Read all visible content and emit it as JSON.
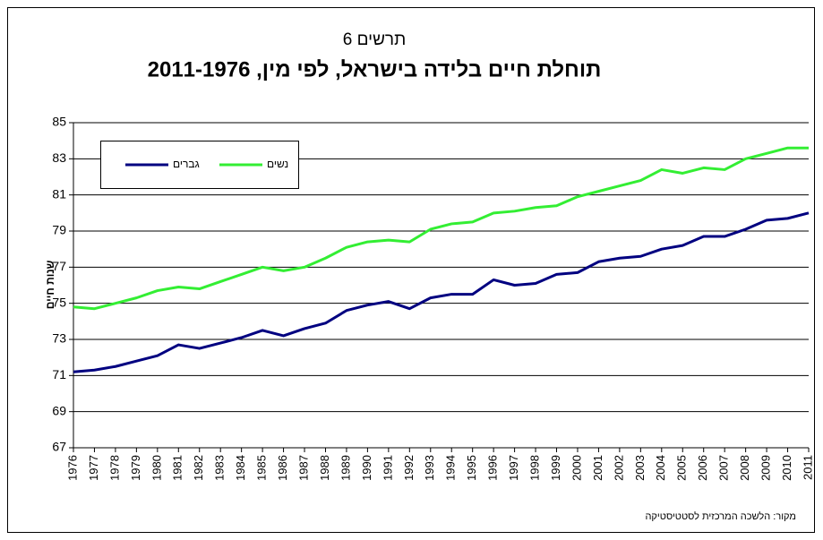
{
  "chart_data": {
    "type": "line",
    "subtitle": "תרשים 6",
    "title": "תוחלת חיים בלידה בישראל, לפי מין, 2011-1976",
    "y_label": "שנות חיים",
    "source": "מקור: הלשכה המרכזית לסטטיסטיקה",
    "categories": [
      "1976",
      "1977",
      "1978",
      "1979",
      "1980",
      "1981",
      "1982",
      "1983",
      "1984",
      "1985",
      "1986",
      "1987",
      "1988",
      "1989",
      "1990",
      "1991",
      "1992",
      "1993",
      "1994",
      "1995",
      "1996",
      "1997",
      "1998",
      "1999",
      "2000",
      "2001",
      "2002",
      "2003",
      "2004",
      "2005",
      "2006",
      "2007",
      "2008",
      "2009",
      "2010",
      "2011"
    ],
    "series": [
      {
        "name": "גברים",
        "color": "#000080",
        "values": [
          71.2,
          71.3,
          71.5,
          71.8,
          72.1,
          72.7,
          72.5,
          72.8,
          73.1,
          73.5,
          73.2,
          73.6,
          73.9,
          74.6,
          74.9,
          75.1,
          74.7,
          75.3,
          75.5,
          75.5,
          76.3,
          76.0,
          76.1,
          76.6,
          76.7,
          77.3,
          77.5,
          77.6,
          78.0,
          78.2,
          78.7,
          78.7,
          79.1,
          79.6,
          79.7,
          80.0
        ]
      },
      {
        "name": "נשים",
        "color": "#33ee33",
        "values": [
          74.8,
          74.7,
          75.0,
          75.3,
          75.7,
          75.9,
          75.8,
          76.2,
          76.6,
          77.0,
          76.8,
          77.0,
          77.5,
          78.1,
          78.4,
          78.5,
          78.4,
          79.1,
          79.4,
          79.5,
          80.0,
          80.1,
          80.3,
          80.4,
          80.9,
          81.2,
          81.5,
          81.8,
          82.4,
          82.2,
          82.5,
          82.4,
          83.0,
          83.3,
          83.6,
          83.6
        ]
      }
    ],
    "ylim": [
      67,
      85
    ],
    "yticks": [
      67,
      69,
      71,
      73,
      75,
      77,
      79,
      81,
      83,
      85
    ],
    "grid": true,
    "legend_position": "upper left"
  }
}
